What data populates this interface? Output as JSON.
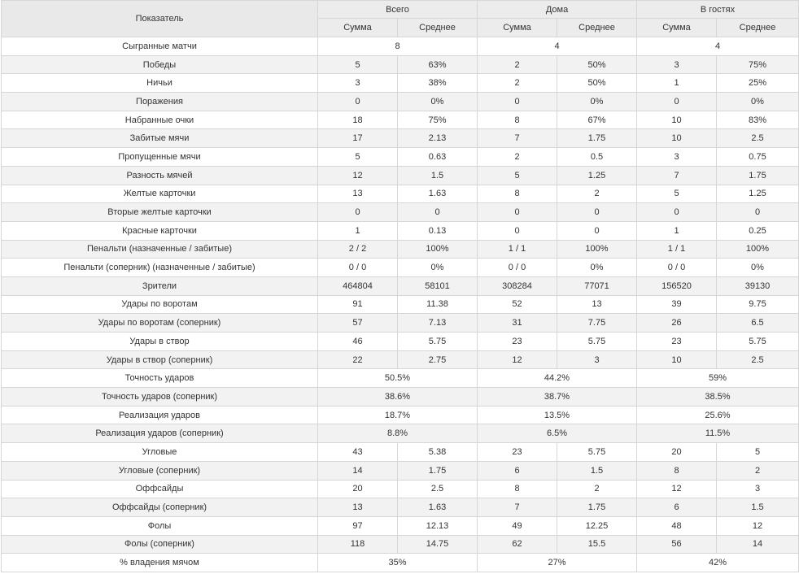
{
  "header": {
    "metric": "Показатель",
    "groups": [
      "Всего",
      "Дома",
      "В гостях"
    ],
    "sub": [
      "Сумма",
      "Среднее"
    ]
  },
  "rows": [
    {
      "label": "Сыгранные матчи",
      "merged": true,
      "values": [
        "8",
        "4",
        "4"
      ]
    },
    {
      "label": "Победы",
      "values": [
        "5",
        "63%",
        "2",
        "50%",
        "3",
        "75%"
      ]
    },
    {
      "label": "Ничьи",
      "values": [
        "3",
        "38%",
        "2",
        "50%",
        "1",
        "25%"
      ]
    },
    {
      "label": "Поражения",
      "values": [
        "0",
        "0%",
        "0",
        "0%",
        "0",
        "0%"
      ]
    },
    {
      "label": "Набранные очки",
      "values": [
        "18",
        "75%",
        "8",
        "67%",
        "10",
        "83%"
      ]
    },
    {
      "label": "Забитые мячи",
      "values": [
        "17",
        "2.13",
        "7",
        "1.75",
        "10",
        "2.5"
      ]
    },
    {
      "label": "Пропущенные мячи",
      "values": [
        "5",
        "0.63",
        "2",
        "0.5",
        "3",
        "0.75"
      ]
    },
    {
      "label": "Разность мячей",
      "values": [
        "12",
        "1.5",
        "5",
        "1.25",
        "7",
        "1.75"
      ]
    },
    {
      "label": "Желтые карточки",
      "values": [
        "13",
        "1.63",
        "8",
        "2",
        "5",
        "1.25"
      ]
    },
    {
      "label": "Вторые желтые карточки",
      "values": [
        "0",
        "0",
        "0",
        "0",
        "0",
        "0"
      ]
    },
    {
      "label": "Красные карточки",
      "values": [
        "1",
        "0.13",
        "0",
        "0",
        "1",
        "0.25"
      ]
    },
    {
      "label": "Пенальти (назначенные / забитые)",
      "values": [
        "2 / 2",
        "100%",
        "1 / 1",
        "100%",
        "1 / 1",
        "100%"
      ]
    },
    {
      "label": "Пенальти (соперник) (назначенные / забитые)",
      "values": [
        "0 / 0",
        "0%",
        "0 / 0",
        "0%",
        "0 / 0",
        "0%"
      ]
    },
    {
      "label": "Зрители",
      "values": [
        "464804",
        "58101",
        "308284",
        "77071",
        "156520",
        "39130"
      ]
    },
    {
      "label": "Удары по воротам",
      "values": [
        "91",
        "11.38",
        "52",
        "13",
        "39",
        "9.75"
      ]
    },
    {
      "label": "Удары по воротам (соперник)",
      "values": [
        "57",
        "7.13",
        "31",
        "7.75",
        "26",
        "6.5"
      ]
    },
    {
      "label": "Удары в створ",
      "values": [
        "46",
        "5.75",
        "23",
        "5.75",
        "23",
        "5.75"
      ]
    },
    {
      "label": "Удары в створ (соперник)",
      "values": [
        "22",
        "2.75",
        "12",
        "3",
        "10",
        "2.5"
      ]
    },
    {
      "label": "Точность ударов",
      "merged": true,
      "values": [
        "50.5%",
        "44.2%",
        "59%"
      ]
    },
    {
      "label": "Точность ударов (соперник)",
      "merged": true,
      "values": [
        "38.6%",
        "38.7%",
        "38.5%"
      ]
    },
    {
      "label": "Реализация ударов",
      "merged": true,
      "values": [
        "18.7%",
        "13.5%",
        "25.6%"
      ]
    },
    {
      "label": "Реализация ударов (соперник)",
      "merged": true,
      "values": [
        "8.8%",
        "6.5%",
        "11.5%"
      ]
    },
    {
      "label": "Угловые",
      "values": [
        "43",
        "5.38",
        "23",
        "5.75",
        "20",
        "5"
      ]
    },
    {
      "label": "Угловые (соперник)",
      "values": [
        "14",
        "1.75",
        "6",
        "1.5",
        "8",
        "2"
      ]
    },
    {
      "label": "Оффсайды",
      "values": [
        "20",
        "2.5",
        "8",
        "2",
        "12",
        "3"
      ]
    },
    {
      "label": "Оффсайды (соперник)",
      "values": [
        "13",
        "1.63",
        "7",
        "1.75",
        "6",
        "1.5"
      ]
    },
    {
      "label": "Фолы",
      "values": [
        "97",
        "12.13",
        "49",
        "12.25",
        "48",
        "12"
      ]
    },
    {
      "label": "Фолы (соперник)",
      "values": [
        "118",
        "14.75",
        "62",
        "15.5",
        "56",
        "14"
      ]
    },
    {
      "label": "% владения мячом",
      "merged": true,
      "values": [
        "35%",
        "27%",
        "42%"
      ]
    }
  ]
}
